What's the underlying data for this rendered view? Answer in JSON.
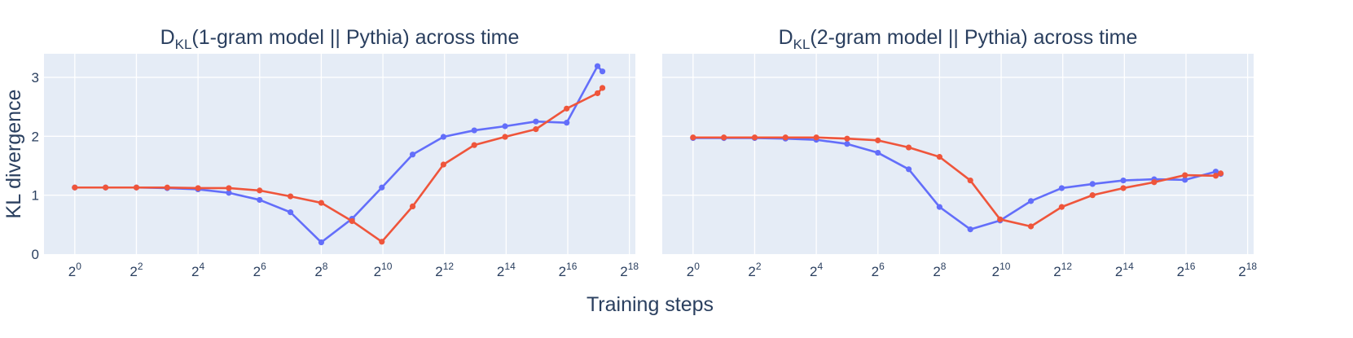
{
  "colors": {
    "plot_background": "#e5ecf6",
    "grid": "#ffffff",
    "text": "#2a3f5f",
    "series_blue": "#636efa",
    "series_red": "#ef553b"
  },
  "shared": {
    "xlabel": "Training steps",
    "ylabel": "KL divergence"
  },
  "chart_data": [
    {
      "type": "line",
      "title_main": "D",
      "title_sub": "KL",
      "title_rest": "(1-gram model || Pythia) across time",
      "xscale": "log2",
      "xlim": [
        0.5,
        300000
      ],
      "ylim": [
        0,
        3.4
      ],
      "x_tick_base": "2",
      "x_tick_exponents": [
        "0",
        "2",
        "4",
        "6",
        "8",
        "10",
        "12",
        "14",
        "16",
        "18"
      ],
      "y_ticks": [
        "0",
        "1",
        "2",
        "3"
      ],
      "grid": true,
      "series": [
        {
          "color": "#636efa",
          "x": [
            1,
            2,
            4,
            8,
            16,
            32,
            64,
            128,
            256,
            512,
            1000,
            2000,
            4000,
            8000,
            16000,
            32000,
            64000,
            128000,
            143000
          ],
          "y": [
            1.13,
            1.13,
            1.13,
            1.12,
            1.1,
            1.04,
            0.92,
            0.71,
            0.2,
            0.6,
            1.13,
            1.69,
            1.99,
            2.1,
            2.17,
            2.25,
            2.23,
            3.19,
            3.1
          ]
        },
        {
          "color": "#ef553b",
          "x": [
            1,
            2,
            4,
            8,
            16,
            32,
            64,
            128,
            256,
            512,
            1000,
            2000,
            4000,
            8000,
            16000,
            32000,
            64000,
            128000,
            143000
          ],
          "y": [
            1.13,
            1.13,
            1.13,
            1.13,
            1.12,
            1.12,
            1.08,
            0.98,
            0.87,
            0.56,
            0.21,
            0.81,
            1.52,
            1.85,
            1.99,
            2.12,
            2.47,
            2.73,
            2.82
          ]
        }
      ]
    },
    {
      "type": "line",
      "title_main": "D",
      "title_sub": "KL",
      "title_rest": "(2-gram model || Pythia) across time",
      "xscale": "log2",
      "xlim": [
        0.5,
        300000
      ],
      "ylim": [
        0,
        3.4
      ],
      "x_tick_base": "2",
      "x_tick_exponents": [
        "0",
        "2",
        "4",
        "6",
        "8",
        "10",
        "12",
        "14",
        "16",
        "18"
      ],
      "y_ticks": [
        "0",
        "1",
        "2",
        "3"
      ],
      "grid": true,
      "series": [
        {
          "color": "#636efa",
          "x": [
            1,
            2,
            4,
            8,
            16,
            32,
            64,
            128,
            256,
            512,
            1000,
            2000,
            4000,
            8000,
            16000,
            32000,
            64000,
            128000,
            143000
          ],
          "y": [
            1.97,
            1.97,
            1.97,
            1.96,
            1.94,
            1.87,
            1.72,
            1.44,
            0.8,
            0.42,
            0.57,
            0.9,
            1.12,
            1.19,
            1.25,
            1.27,
            1.26,
            1.4,
            1.36
          ]
        },
        {
          "color": "#ef553b",
          "x": [
            1,
            2,
            4,
            8,
            16,
            32,
            64,
            128,
            256,
            512,
            1000,
            2000,
            4000,
            8000,
            16000,
            32000,
            64000,
            128000,
            143000
          ],
          "y": [
            1.98,
            1.98,
            1.98,
            1.98,
            1.98,
            1.96,
            1.93,
            1.81,
            1.65,
            1.25,
            0.59,
            0.47,
            0.8,
            1.0,
            1.12,
            1.22,
            1.34,
            1.33,
            1.37
          ]
        }
      ]
    }
  ]
}
